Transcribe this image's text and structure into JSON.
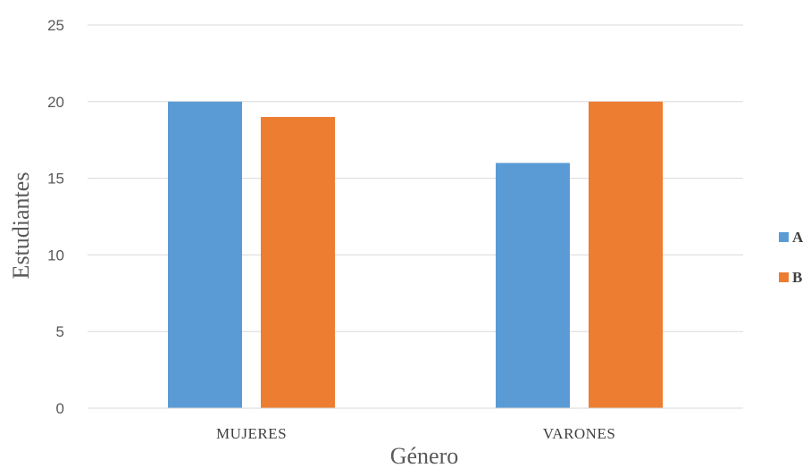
{
  "chart_data": {
    "type": "bar",
    "categories": [
      "MUJERES",
      "VARONES"
    ],
    "series": [
      {
        "name": "A",
        "values": [
          20,
          16
        ],
        "color": "#5B9BD5"
      },
      {
        "name": "B",
        "values": [
          19,
          20
        ],
        "color": "#ED7D31"
      }
    ],
    "xlabel": "Género",
    "ylabel": "Estudiantes",
    "ylim": [
      0,
      25
    ],
    "yticks": [
      "0",
      "5",
      "10",
      "15",
      "20",
      "25"
    ],
    "grid": true,
    "legend": "right"
  }
}
